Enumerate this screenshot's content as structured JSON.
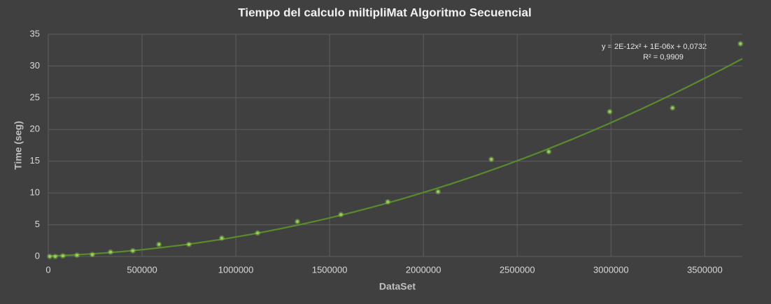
{
  "chart_data": {
    "type": "scatter",
    "title": "Tiempo  del calculo miltipliMat Algoritmo Secuencial",
    "x_label": "DataSet",
    "y_label": "Time (seg)",
    "x": [
      7500,
      37000,
      78000,
      153000,
      235000,
      332000,
      451000,
      590000,
      750000,
      925000,
      1116000,
      1328000,
      1560000,
      1810000,
      2078000,
      2362000,
      2668000,
      2993000,
      3328000,
      3690000
    ],
    "values": [
      0,
      0,
      0.1,
      0.2,
      0.3,
      0.7,
      0.9,
      1.9,
      1.9,
      2.9,
      3.7,
      5.5,
      6.6,
      8.6,
      10.2,
      15.3,
      16.5,
      22.8,
      23.4,
      33.5
    ],
    "color": "#92d050",
    "xlim": [
      0,
      3700000
    ],
    "xticks": [
      0,
      500000,
      1000000,
      1500000,
      2000000,
      2500000,
      3000000,
      3500000
    ],
    "ylim": [
      0,
      35
    ],
    "yticks": [
      0,
      5,
      10,
      15,
      20,
      25,
      30,
      35
    ],
    "grid": true,
    "trendline": {
      "type": "polynomial",
      "coefficients": [
        0.0732,
        1e-06,
        2e-12
      ],
      "color": "#5a8a2e",
      "label": "y = 2E-12x² + 1E-06x + 0,0732",
      "r2_label": "R² = 0,9909"
    }
  }
}
